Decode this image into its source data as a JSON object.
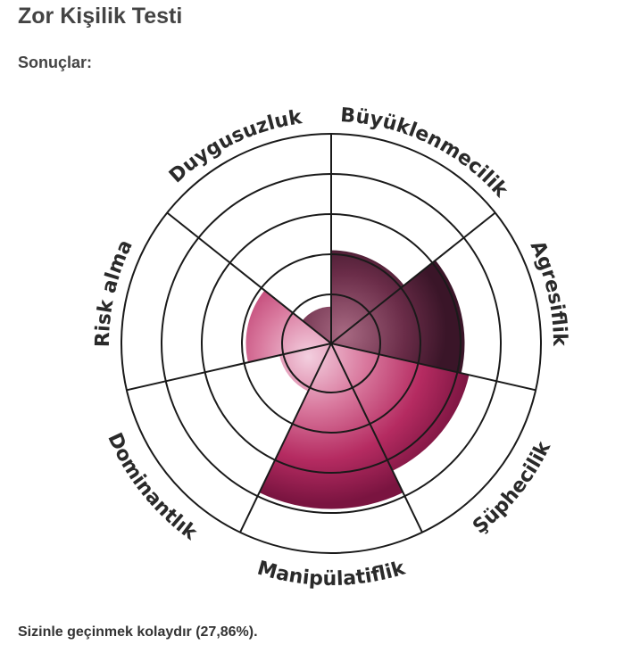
{
  "page": {
    "title": "Zor Kişilik Testi",
    "subtitle": "Sonuçlar:",
    "result_text": "Sizinle geçinmek kolaydır (27,86%)."
  },
  "chart_data": {
    "type": "polar-area",
    "rings": 5,
    "max_value": 5,
    "grid": true,
    "categories": [
      "Büyüklenmecilik",
      "Agresiflik",
      "Şüphecilik",
      "Manipülatiflik",
      "Dominantlık",
      "Risk alma",
      "Duygusuzluk"
    ],
    "values": [
      2.1,
      3.1,
      3.3,
      3.9,
      1.1,
      1.9,
      0.75
    ],
    "colors": {
      "dark": "#3d1830",
      "mid": "#7a2b4c",
      "bright": "#b02357",
      "light": "#e8a2bf",
      "grid": "#1a1a1a"
    }
  }
}
